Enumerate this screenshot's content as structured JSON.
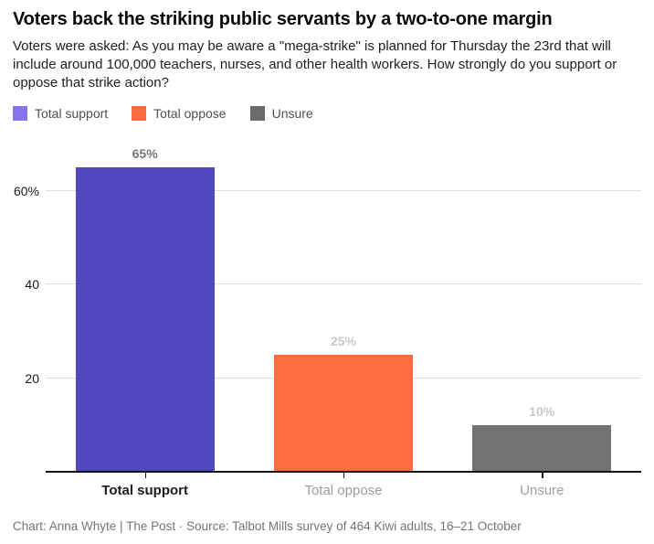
{
  "header": {
    "title": "Voters back the striking public servants by a two-to-one margin",
    "subtitle": "Voters were asked: As you may be aware a \"mega-strike\" is planned for Thursday the 23rd that will include around 100,000 teachers, nurses, and other health workers. How strongly do you support or oppose that strike action?"
  },
  "legend": {
    "items": [
      {
        "label": "Total support",
        "color": "#8673f0"
      },
      {
        "label": "Total oppose",
        "color": "#fb6b42"
      },
      {
        "label": "Unsure",
        "color": "#6b6b6b"
      }
    ]
  },
  "chart_data": {
    "type": "bar",
    "title": "Voters back the striking public servants by a two-to-one margin",
    "categories": [
      "Total support",
      "Total oppose",
      "Unsure"
    ],
    "values": [
      65,
      25,
      10
    ],
    "value_labels": [
      "65%",
      "25%",
      "10%"
    ],
    "bar_colors": [
      "#5248bd",
      "#fc6e42",
      "#737373"
    ],
    "value_label_colors": [
      "#757575",
      "#c9c9c9",
      "#c9c9c9"
    ],
    "category_emphasis": [
      true,
      false,
      false
    ],
    "xlabel": "",
    "ylabel": "",
    "ylim": [
      0,
      72
    ],
    "y_ticks": [
      {
        "value": 60,
        "label": "60%"
      },
      {
        "value": 40,
        "label": "40"
      },
      {
        "value": 20,
        "label": "20"
      }
    ],
    "grid": true,
    "gridline_color": "#dedede",
    "axis_line_color": "#141414",
    "legend_position": "top"
  },
  "footer": {
    "text": "Chart: Anna Whyte | The Post · Source: Talbot Mills survey of 464 Kiwi adults, 16–21 October"
  }
}
